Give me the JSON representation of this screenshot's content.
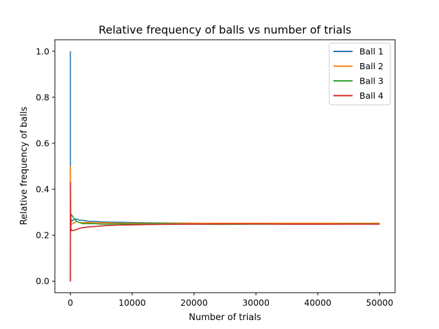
{
  "chart_data": {
    "type": "line",
    "title": "Relative frequency of balls vs number of trials",
    "xlabel": "Number of trials",
    "ylabel": "Relative frequency of balls",
    "xlim": [
      -2500,
      52500
    ],
    "ylim": [
      -0.05,
      1.05
    ],
    "xticks": [
      0,
      10000,
      20000,
      30000,
      40000,
      50000
    ],
    "xtick_labels": [
      "0",
      "10000",
      "20000",
      "30000",
      "40000",
      "50000"
    ],
    "yticks": [
      0.0,
      0.2,
      0.4,
      0.6,
      0.8,
      1.0
    ],
    "ytick_labels": [
      "0.0",
      "0.2",
      "0.4",
      "0.6",
      "0.8",
      "1.0"
    ],
    "grid": false,
    "legend_position": "top-right",
    "series": [
      {
        "name": "Ball 1",
        "color": "#1f77b4",
        "x": [
          1,
          2,
          5,
          20,
          50,
          100,
          200,
          400,
          700,
          1000,
          1500,
          2000,
          3000,
          4000,
          5000,
          6000,
          8000,
          10000,
          12000,
          15000,
          20000,
          25000,
          30000,
          35000,
          40000,
          45000,
          50000
        ],
        "y": [
          1.0,
          0.5,
          0.4,
          0.3,
          0.28,
          0.27,
          0.26,
          0.265,
          0.27,
          0.27,
          0.265,
          0.265,
          0.26,
          0.26,
          0.258,
          0.257,
          0.256,
          0.255,
          0.254,
          0.253,
          0.252,
          0.251,
          0.251,
          0.251,
          0.251,
          0.251,
          0.251
        ]
      },
      {
        "name": "Ball 2",
        "color": "#ff7f0e",
        "x": [
          1,
          2,
          5,
          20,
          50,
          100,
          200,
          400,
          700,
          1000,
          1500,
          2000,
          3000,
          4000,
          5000,
          6000,
          8000,
          10000,
          12000,
          15000,
          20000,
          25000,
          30000,
          35000,
          40000,
          45000,
          50000
        ],
        "y": [
          0.0,
          0.5,
          0.4,
          0.25,
          0.26,
          0.24,
          0.25,
          0.25,
          0.255,
          0.26,
          0.255,
          0.255,
          0.255,
          0.254,
          0.254,
          0.253,
          0.252,
          0.252,
          0.252,
          0.252,
          0.252,
          0.252,
          0.252,
          0.252,
          0.252,
          0.252,
          0.252
        ]
      },
      {
        "name": "Ball 3",
        "color": "#2ca02c",
        "x": [
          1,
          2,
          5,
          20,
          50,
          100,
          200,
          400,
          700,
          1000,
          1500,
          2000,
          3000,
          4000,
          5000,
          6000,
          8000,
          10000,
          12000,
          15000,
          20000,
          25000,
          30000,
          35000,
          40000,
          45000,
          50000
        ],
        "y": [
          0.0,
          0.0,
          0.2,
          0.3,
          0.22,
          0.28,
          0.29,
          0.28,
          0.27,
          0.26,
          0.255,
          0.25,
          0.25,
          0.25,
          0.248,
          0.248,
          0.249,
          0.249,
          0.25,
          0.25,
          0.248,
          0.247,
          0.248,
          0.248,
          0.248,
          0.249,
          0.249
        ]
      },
      {
        "name": "Ball 4",
        "color": "#d62728",
        "x": [
          1,
          2,
          5,
          20,
          50,
          100,
          200,
          400,
          700,
          1000,
          1500,
          2000,
          3000,
          4000,
          5000,
          6000,
          8000,
          10000,
          12000,
          15000,
          20000,
          25000,
          30000,
          35000,
          40000,
          45000,
          50000
        ],
        "y": [
          0.0,
          0.0,
          0.0,
          0.43,
          0.3,
          0.23,
          0.22,
          0.22,
          0.222,
          0.225,
          0.23,
          0.233,
          0.236,
          0.238,
          0.24,
          0.242,
          0.244,
          0.245,
          0.246,
          0.247,
          0.248,
          0.249,
          0.249,
          0.248,
          0.248,
          0.248,
          0.248
        ]
      }
    ]
  }
}
